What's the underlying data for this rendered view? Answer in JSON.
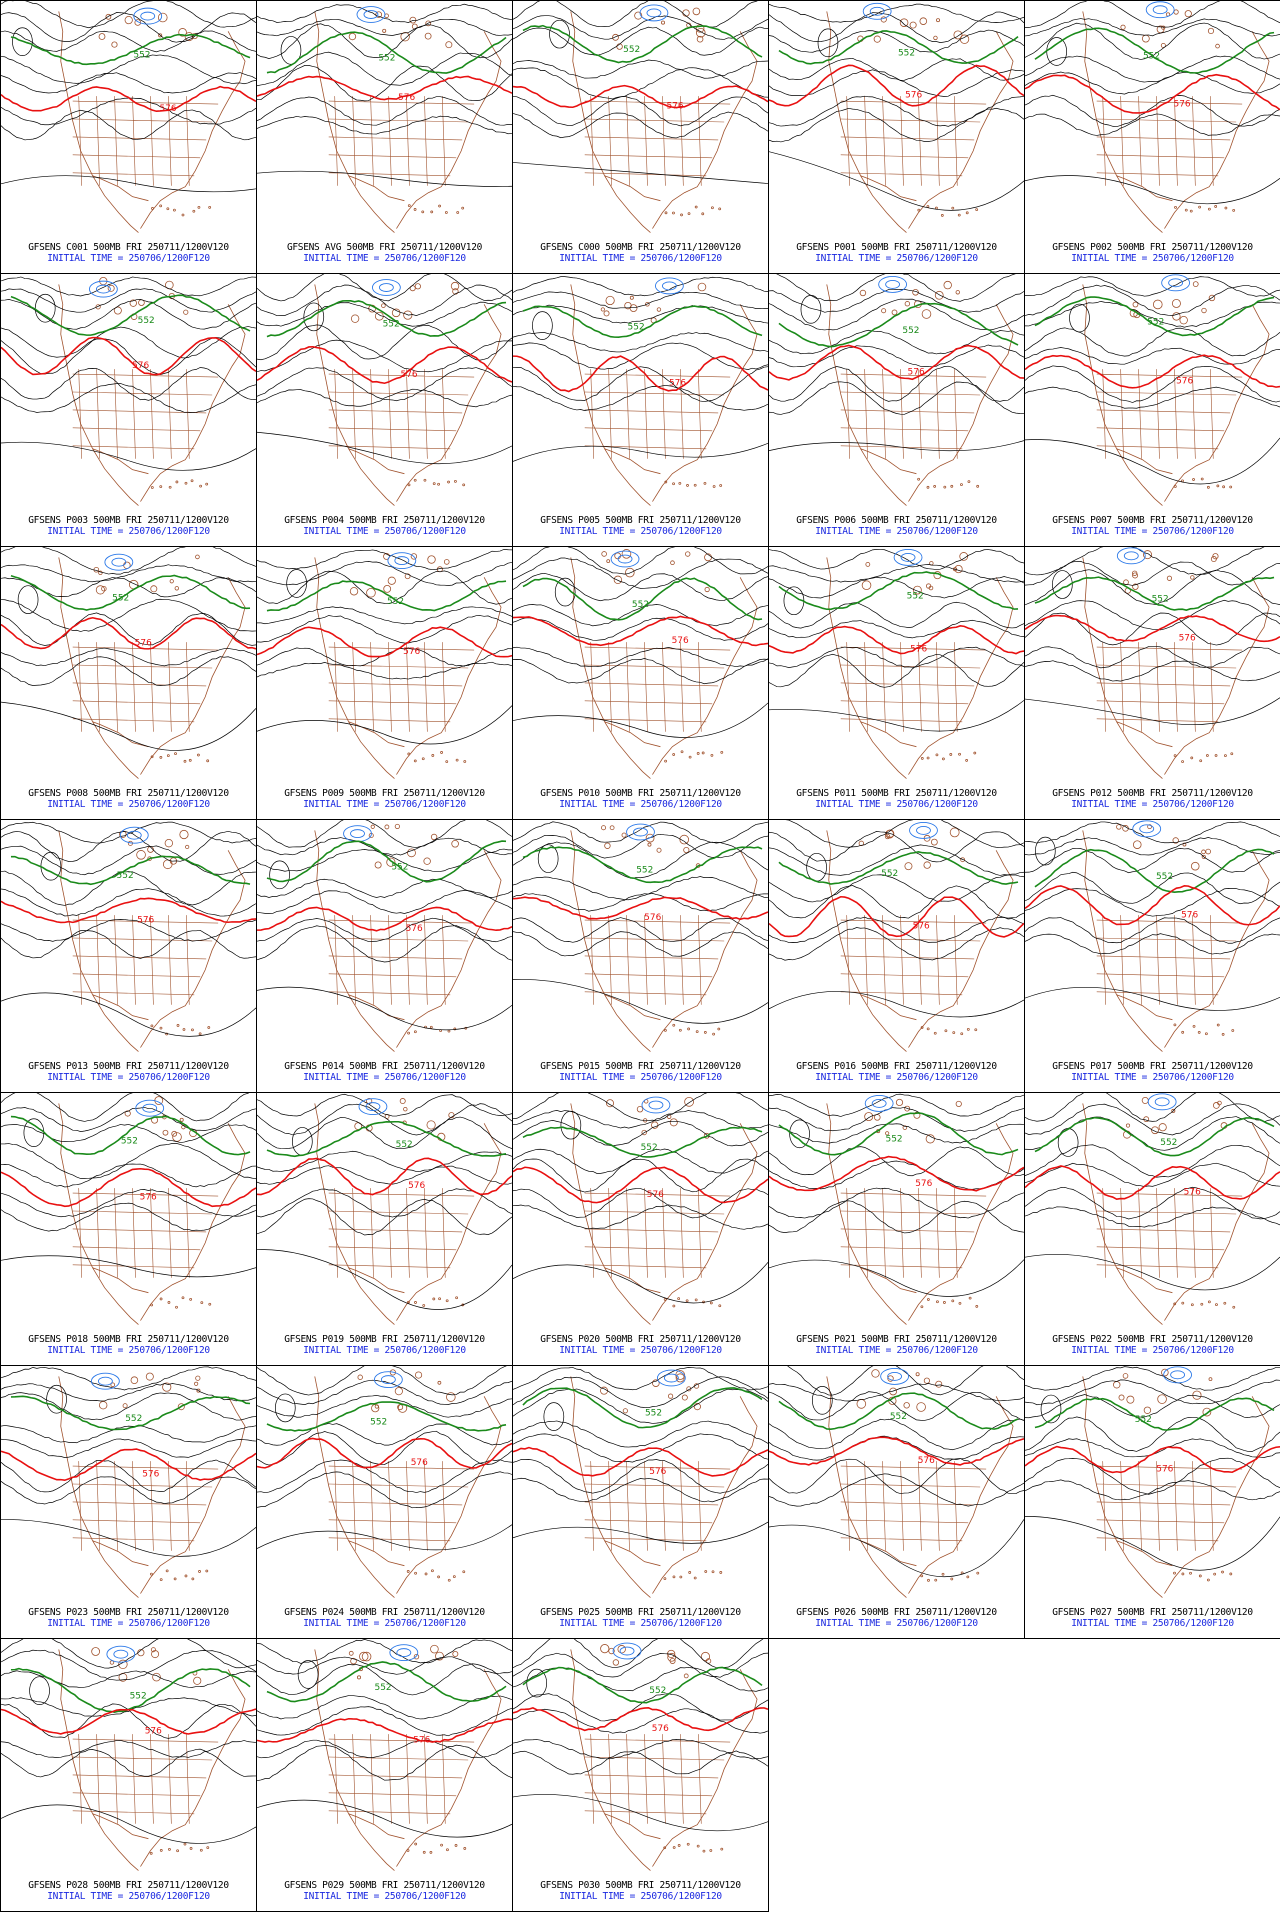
{
  "colors": {
    "background": "#ffffff",
    "height_contour": "#000000",
    "contour_552": "#1a8a1a",
    "contour_576": "#e81010",
    "low_contours": "#2a78e8",
    "geography": "#a0522d",
    "initial_time_text": "#1a28e0"
  },
  "contour_labels": {
    "green": "552",
    "red": "576"
  },
  "initial_time": "INITIAL TIME = 250706/1200F120",
  "panels": [
    {
      "member": "GFSENS C001 500MB FRI 250711/1200V120",
      "init": "INITIAL TIME = 250706/1200F120"
    },
    {
      "member": "GFSENS AVG 500MB FRI 250711/1200V120",
      "init": "INITIAL TIME = 250706/1200F120"
    },
    {
      "member": "GFSENS C000 500MB FRI 250711/1200V120",
      "init": "INITIAL TIME = 250706/1200F120"
    },
    {
      "member": "GFSENS P001 500MB FRI 250711/1200V120",
      "init": "INITIAL TIME = 250706/1200F120"
    },
    {
      "member": "GFSENS P002 500MB FRI 250711/1200V120",
      "init": "INITIAL TIME = 250706/1200F120"
    },
    {
      "member": "GFSENS P003 500MB FRI 250711/1200V120",
      "init": "INITIAL TIME = 250706/1200F120"
    },
    {
      "member": "GFSENS P004 500MB FRI 250711/1200V120",
      "init": "INITIAL TIME = 250706/1200F120"
    },
    {
      "member": "GFSENS P005 500MB FRI 250711/1200V120",
      "init": "INITIAL TIME = 250706/1200F120"
    },
    {
      "member": "GFSENS P006 500MB FRI 250711/1200V120",
      "init": "INITIAL TIME = 250706/1200F120"
    },
    {
      "member": "GFSENS P007 500MB FRI 250711/1200V120",
      "init": "INITIAL TIME = 250706/1200F120"
    },
    {
      "member": "GFSENS P008 500MB FRI 250711/1200V120",
      "init": "INITIAL TIME = 250706/1200F120"
    },
    {
      "member": "GFSENS P009 500MB FRI 250711/1200V120",
      "init": "INITIAL TIME = 250706/1200F120"
    },
    {
      "member": "GFSENS P010 500MB FRI 250711/1200V120",
      "init": "INITIAL TIME = 250706/1200F120"
    },
    {
      "member": "GFSENS P011 500MB FRI 250711/1200V120",
      "init": "INITIAL TIME = 250706/1200F120"
    },
    {
      "member": "GFSENS P012 500MB FRI 250711/1200V120",
      "init": "INITIAL TIME = 250706/1200F120"
    },
    {
      "member": "GFSENS P013 500MB FRI 250711/1200V120",
      "init": "INITIAL TIME = 250706/1200F120"
    },
    {
      "member": "GFSENS P014 500MB FRI 250711/1200V120",
      "init": "INITIAL TIME = 250706/1200F120"
    },
    {
      "member": "GFSENS P015 500MB FRI 250711/1200V120",
      "init": "INITIAL TIME = 250706/1200F120"
    },
    {
      "member": "GFSENS P016 500MB FRI 250711/1200V120",
      "init": "INITIAL TIME = 250706/1200F120"
    },
    {
      "member": "GFSENS P017 500MB FRI 250711/1200V120",
      "init": "INITIAL TIME = 250706/1200F120"
    },
    {
      "member": "GFSENS P018 500MB FRI 250711/1200V120",
      "init": "INITIAL TIME = 250706/1200F120"
    },
    {
      "member": "GFSENS P019 500MB FRI 250711/1200V120",
      "init": "INITIAL TIME = 250706/1200F120"
    },
    {
      "member": "GFSENS P020 500MB FRI 250711/1200V120",
      "init": "INITIAL TIME = 250706/1200F120"
    },
    {
      "member": "GFSENS P021 500MB FRI 250711/1200V120",
      "init": "INITIAL TIME = 250706/1200F120"
    },
    {
      "member": "GFSENS P022 500MB FRI 250711/1200V120",
      "init": "INITIAL TIME = 250706/1200F120"
    },
    {
      "member": "GFSENS P023 500MB FRI 250711/1200V120",
      "init": "INITIAL TIME = 250706/1200F120"
    },
    {
      "member": "GFSENS P024 500MB FRI 250711/1200V120",
      "init": "INITIAL TIME = 250706/1200F120"
    },
    {
      "member": "GFSENS P025 500MB FRI 250711/1200V120",
      "init": "INITIAL TIME = 250706/1200F120"
    },
    {
      "member": "GFSENS P026 500MB FRI 250711/1200V120",
      "init": "INITIAL TIME = 250706/1200F120"
    },
    {
      "member": "GFSENS P027 500MB FRI 250711/1200V120",
      "init": "INITIAL TIME = 250706/1200F120"
    },
    {
      "member": "GFSENS P028 500MB FRI 250711/1200V120",
      "init": "INITIAL TIME = 250706/1200F120"
    },
    {
      "member": "GFSENS P029 500MB FRI 250711/1200V120",
      "init": "INITIAL TIME = 250706/1200F120"
    },
    {
      "member": "GFSENS P030 500MB FRI 250711/1200V120",
      "init": "INITIAL TIME = 250706/1200F120"
    }
  ]
}
